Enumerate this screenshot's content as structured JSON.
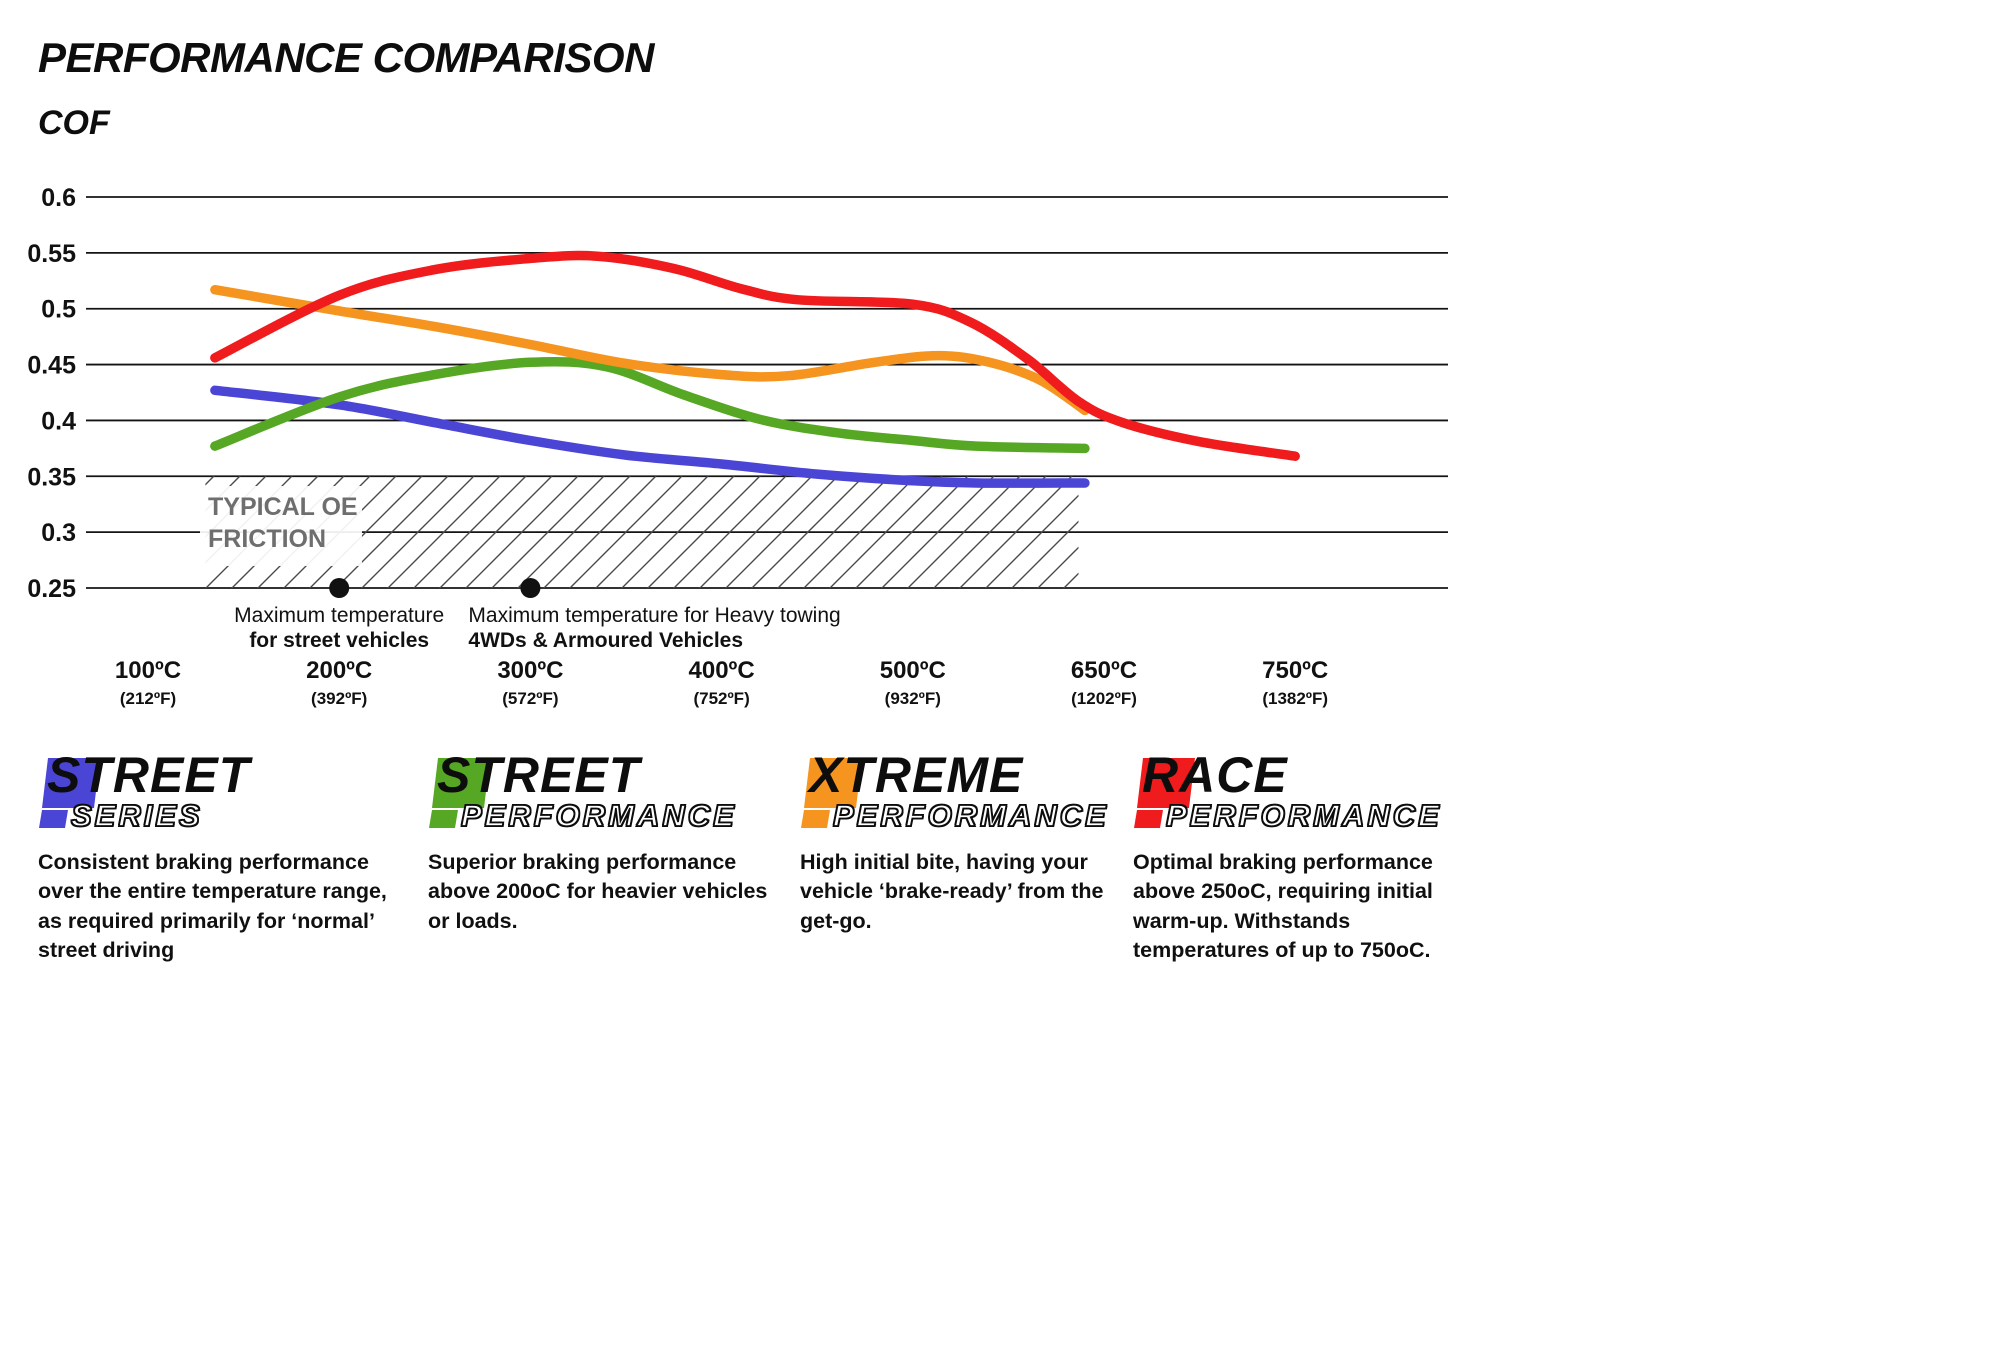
{
  "chart_data": {
    "type": "line",
    "title": "PERFORMANCE COMPARISON",
    "ylabel": "COF",
    "ylim": [
      0.25,
      0.6
    ],
    "grid": true,
    "y_ticks": [
      "0.6",
      "0.55",
      "0.5",
      "0.45",
      "0.4",
      "0.35",
      "0.3",
      "0.25"
    ],
    "x_tick_temps": [
      100,
      200,
      300,
      400,
      500,
      650,
      750
    ],
    "x_ticks": [
      {
        "label": "100ºC",
        "sub": "(212ºF)"
      },
      {
        "label": "200ºC",
        "sub": "(392ºF)"
      },
      {
        "label": "300ºC",
        "sub": "(572ºF)"
      },
      {
        "label": "400ºC",
        "sub": "(752ºF)"
      },
      {
        "label": "500ºC",
        "sub": "(932ºF)"
      },
      {
        "label": "650ºC",
        "sub": "(1202ºF)"
      },
      {
        "label": "750ºC",
        "sub": "(1382ºF)"
      }
    ],
    "series": [
      {
        "name": "Street Series",
        "color": "#4b45d6",
        "points": [
          [
            135,
            0.427
          ],
          [
            200,
            0.414
          ],
          [
            250,
            0.398
          ],
          [
            300,
            0.382
          ],
          [
            350,
            0.369
          ],
          [
            400,
            0.361
          ],
          [
            450,
            0.352
          ],
          [
            500,
            0.346
          ],
          [
            550,
            0.344
          ],
          [
            635,
            0.344
          ]
        ]
      },
      {
        "name": "Street Performance",
        "color": "#56a724",
        "points": [
          [
            135,
            0.377
          ],
          [
            200,
            0.421
          ],
          [
            250,
            0.441
          ],
          [
            300,
            0.452
          ],
          [
            340,
            0.448
          ],
          [
            380,
            0.423
          ],
          [
            420,
            0.401
          ],
          [
            460,
            0.389
          ],
          [
            500,
            0.382
          ],
          [
            550,
            0.377
          ],
          [
            635,
            0.375
          ]
        ]
      },
      {
        "name": "Xtreme Performance",
        "color": "#f5941f",
        "points": [
          [
            135,
            0.517
          ],
          [
            200,
            0.498
          ],
          [
            250,
            0.484
          ],
          [
            300,
            0.468
          ],
          [
            350,
            0.451
          ],
          [
            400,
            0.441
          ],
          [
            435,
            0.44
          ],
          [
            480,
            0.452
          ],
          [
            520,
            0.458
          ],
          [
            560,
            0.452
          ],
          [
            600,
            0.436
          ],
          [
            635,
            0.409
          ]
        ]
      },
      {
        "name": "Race Performance",
        "color": "#ef1b1d",
        "points": [
          [
            135,
            0.456
          ],
          [
            200,
            0.512
          ],
          [
            250,
            0.535
          ],
          [
            300,
            0.545
          ],
          [
            335,
            0.547
          ],
          [
            375,
            0.536
          ],
          [
            410,
            0.518
          ],
          [
            440,
            0.508
          ],
          [
            500,
            0.504
          ],
          [
            545,
            0.488
          ],
          [
            590,
            0.455
          ],
          [
            630,
            0.417
          ],
          [
            660,
            0.398
          ],
          [
            700,
            0.381
          ],
          [
            750,
            0.368
          ]
        ]
      }
    ],
    "oe_band": {
      "label_line1": "TYPICAL OE",
      "label_line2": "FRICTION",
      "x_start": 130,
      "x_end": 630,
      "y_min": 0.25,
      "y_max": 0.35
    },
    "annotations": [
      {
        "temp_c": 200,
        "cof": 0.25,
        "align": "center",
        "line1": "Maximum temperature",
        "line2": "for street vehicles"
      },
      {
        "temp_c": 300,
        "cof": 0.25,
        "align": "left",
        "line1": "Maximum temperature for Heavy towing",
        "line2": "4WDs & Armoured Vehicles"
      }
    ],
    "legend_position": "bottom"
  },
  "legend": [
    {
      "title": "STREET",
      "subtitle": "SERIES",
      "color": "#4b45d6",
      "description": "Consistent braking performance over the entire temperature range, as required primarily for ‘normal’ street driving"
    },
    {
      "title": "STREET",
      "subtitle": "PERFORMANCE",
      "color": "#56a724",
      "description": "Superior braking performance above 200oC for heavier vehicles or loads."
    },
    {
      "title": "XTREME",
      "subtitle": "PERFORMANCE",
      "color": "#f5941f",
      "description": "High initial bite, having your vehicle ‘brake-ready’ from the get-go."
    },
    {
      "title": "RACE",
      "subtitle": "PERFORMANCE",
      "color": "#ef1b1d",
      "description": "Optimal braking performance above 250oC, requiring initial warm-up. Withstands temperatures of up to 750oC."
    }
  ]
}
